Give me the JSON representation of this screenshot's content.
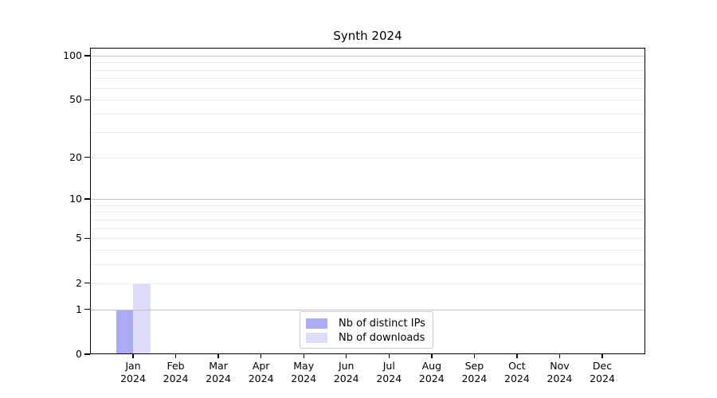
{
  "chart_data": {
    "type": "bar",
    "title": "Synth 2024",
    "categories": [
      "Jan 2024",
      "Feb 2024",
      "Mar 2024",
      "Apr 2024",
      "May 2024",
      "Jun 2024",
      "Jul 2024",
      "Aug 2024",
      "Sep 2024",
      "Oct 2024",
      "Nov 2024",
      "Dec 2024"
    ],
    "series": [
      {
        "name": "Nb of distinct IPs",
        "color": "#aaaaf5",
        "values": [
          1,
          0,
          0,
          0,
          0,
          0,
          0,
          0,
          0,
          0,
          0,
          0
        ]
      },
      {
        "name": "Nb of downloads",
        "color": "#dcdcf8",
        "values": [
          2,
          0,
          0,
          0,
          0,
          0,
          0,
          0,
          0,
          0,
          0,
          0
        ]
      }
    ],
    "yscale": "log1p",
    "ylim": [
      0,
      113
    ],
    "yticks": [
      0,
      1,
      2,
      5,
      10,
      20,
      50,
      100
    ],
    "grid": {
      "enabled": true,
      "major_ticks": [
        1,
        10,
        100
      ],
      "minor_ticks": [
        2,
        3,
        4,
        5,
        6,
        7,
        8,
        9,
        20,
        30,
        40,
        50,
        60,
        70,
        80,
        90
      ]
    },
    "legend": {
      "position": "lower center"
    }
  }
}
